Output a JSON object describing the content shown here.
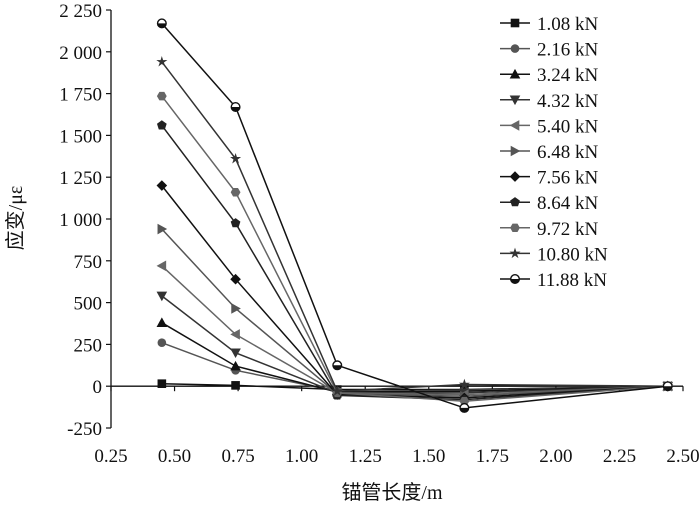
{
  "chart_data": {
    "type": "line",
    "title": "",
    "xlabel": "锚管长度/m",
    "ylabel": "应变/με",
    "xlim": [
      0.25,
      2.5
    ],
    "ylim": [
      -250,
      2250
    ],
    "xticks": [
      "0.25",
      "0.50",
      "0.75",
      "1.00",
      "1.25",
      "1.50",
      "1.75",
      "2.00",
      "2.25",
      "2.50"
    ],
    "yticks": [
      "-250",
      "0",
      "250",
      "500",
      "750",
      "1 000",
      "1 250",
      "1 500",
      "1 750",
      "2 000",
      "2 250"
    ],
    "x": [
      0.45,
      0.74,
      1.14,
      1.64,
      2.44
    ],
    "grid": false,
    "legend_position": "top-right",
    "series": [
      {
        "name": "1.08 kN",
        "marker": "square",
        "color": "#111111",
        "values": [
          15,
          5,
          -20,
          -20,
          0
        ]
      },
      {
        "name": "2.16 kN",
        "marker": "circle",
        "color": "#555555",
        "values": [
          260,
          95,
          -30,
          -25,
          0
        ]
      },
      {
        "name": "3.24 kN",
        "marker": "triangle-up",
        "color": "#111111",
        "values": [
          380,
          120,
          -35,
          -30,
          0
        ]
      },
      {
        "name": "4.32 kN",
        "marker": "triangle-down",
        "color": "#333333",
        "values": [
          540,
          200,
          -40,
          -40,
          0
        ]
      },
      {
        "name": "5.40 kN",
        "marker": "triangle-left",
        "color": "#666666",
        "values": [
          720,
          310,
          -40,
          -50,
          0
        ]
      },
      {
        "name": "6.48 kN",
        "marker": "triangle-right",
        "color": "#555555",
        "values": [
          940,
          465,
          -45,
          -60,
          0
        ]
      },
      {
        "name": "7.56 kN",
        "marker": "diamond",
        "color": "#111111",
        "values": [
          1200,
          640,
          -50,
          -70,
          0
        ]
      },
      {
        "name": "8.64 kN",
        "marker": "pentagon",
        "color": "#222222",
        "values": [
          1560,
          975,
          -55,
          -80,
          0
        ]
      },
      {
        "name": "9.72 kN",
        "marker": "hexagon",
        "color": "#666666",
        "values": [
          1735,
          1160,
          -40,
          -90,
          0
        ]
      },
      {
        "name": "10.80 kN",
        "marker": "star",
        "color": "#333333",
        "values": [
          1940,
          1360,
          -30,
          10,
          0
        ]
      },
      {
        "name": "11.88 kN",
        "marker": "half-circle",
        "color": "#111111",
        "values": [
          2170,
          1670,
          125,
          -130,
          0
        ]
      }
    ]
  }
}
